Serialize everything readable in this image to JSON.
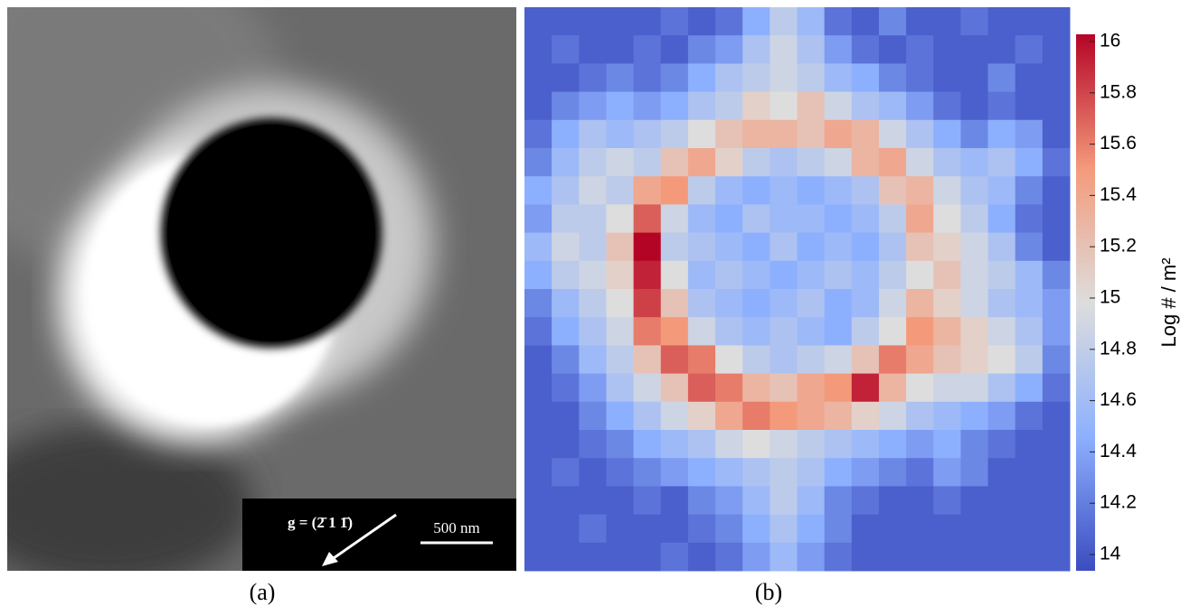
{
  "panel_a": {
    "label": "(a)",
    "direction_label": "g = (2̄ 1 1̄)",
    "scale_bar_label": "500 nm"
  },
  "chart_data": {
    "type": "heatmap",
    "label": "(b)",
    "colormap": [
      "#3b4cc0",
      "#8db0fe",
      "#dddddd",
      "#f49a7b",
      "#b40426"
    ],
    "colorbar": {
      "label": "Log # / m²",
      "lim": [
        14,
        16
      ],
      "ticks": [
        14,
        14.2,
        14.4,
        14.6,
        14.8,
        15,
        15.2,
        15.4,
        15.6,
        15.8,
        16
      ]
    },
    "values": [
      [
        14.1,
        14.1,
        14.1,
        14.1,
        14.1,
        14.2,
        14.1,
        14.2,
        14.5,
        14.8,
        14.6,
        14.2,
        14.1,
        14.3,
        14.1,
        14.1,
        14.2,
        14.1,
        14.1,
        14.1
      ],
      [
        14.1,
        14.2,
        14.1,
        14.1,
        14.2,
        14.1,
        14.3,
        14.4,
        14.7,
        14.9,
        14.7,
        14.4,
        14.2,
        14.1,
        14.2,
        14.1,
        14.1,
        14.1,
        14.2,
        14.1
      ],
      [
        14.1,
        14.1,
        14.2,
        14.3,
        14.2,
        14.3,
        14.5,
        14.7,
        14.8,
        14.9,
        14.8,
        14.6,
        14.5,
        14.3,
        14.2,
        14.1,
        14.1,
        14.3,
        14.1,
        14.1
      ],
      [
        14.1,
        14.3,
        14.4,
        14.5,
        14.4,
        14.5,
        14.7,
        14.8,
        15.1,
        15.0,
        15.2,
        14.9,
        14.7,
        14.6,
        14.4,
        14.2,
        14.1,
        14.2,
        14.1,
        14.1
      ],
      [
        14.2,
        14.5,
        14.7,
        14.6,
        14.7,
        14.8,
        15.0,
        15.2,
        15.3,
        15.3,
        15.2,
        15.4,
        15.3,
        14.9,
        14.7,
        14.5,
        14.3,
        14.5,
        14.4,
        14.1
      ],
      [
        14.3,
        14.6,
        14.8,
        14.9,
        14.8,
        15.2,
        15.4,
        15.1,
        14.8,
        14.7,
        14.8,
        14.9,
        15.3,
        15.4,
        14.9,
        14.7,
        14.6,
        14.7,
        14.5,
        14.2
      ],
      [
        14.5,
        14.7,
        14.9,
        14.8,
        15.4,
        15.5,
        14.8,
        14.6,
        14.5,
        14.6,
        14.5,
        14.6,
        14.7,
        15.2,
        15.3,
        14.9,
        14.7,
        14.6,
        14.3,
        14.1
      ],
      [
        14.4,
        14.8,
        14.8,
        15.0,
        15.7,
        14.9,
        14.6,
        14.5,
        14.7,
        14.6,
        14.6,
        14.5,
        14.6,
        14.8,
        15.4,
        15.0,
        14.8,
        14.5,
        14.2,
        14.1
      ],
      [
        14.6,
        14.9,
        14.8,
        15.2,
        16.0,
        14.8,
        14.7,
        14.6,
        14.5,
        14.7,
        14.5,
        14.6,
        14.5,
        14.7,
        15.2,
        15.1,
        14.9,
        14.7,
        14.3,
        14.1
      ],
      [
        14.5,
        14.8,
        14.9,
        15.1,
        15.9,
        15.0,
        14.6,
        14.7,
        14.6,
        14.5,
        14.6,
        14.7,
        14.6,
        14.8,
        15.0,
        15.2,
        14.9,
        14.8,
        14.6,
        14.3
      ],
      [
        14.3,
        14.6,
        14.8,
        15.0,
        15.8,
        15.2,
        14.7,
        14.6,
        14.5,
        14.6,
        14.7,
        14.5,
        14.6,
        14.9,
        15.3,
        15.1,
        14.9,
        14.7,
        14.6,
        14.4
      ],
      [
        14.2,
        14.5,
        14.7,
        14.9,
        15.6,
        15.5,
        14.9,
        14.7,
        14.6,
        14.7,
        14.6,
        14.5,
        14.8,
        15.0,
        15.5,
        15.3,
        15.1,
        14.9,
        14.7,
        14.4
      ],
      [
        14.1,
        14.3,
        14.6,
        14.8,
        15.2,
        15.7,
        15.6,
        15.0,
        14.8,
        14.7,
        14.8,
        14.9,
        15.2,
        15.6,
        15.4,
        15.2,
        15.1,
        15.0,
        14.8,
        14.3
      ],
      [
        14.1,
        14.2,
        14.4,
        14.7,
        14.9,
        15.2,
        15.7,
        15.6,
        15.3,
        15.2,
        15.4,
        15.5,
        15.9,
        15.3,
        15.0,
        14.9,
        14.9,
        14.7,
        14.5,
        14.2
      ],
      [
        14.1,
        14.1,
        14.3,
        14.5,
        14.7,
        14.9,
        15.1,
        15.4,
        15.6,
        15.5,
        15.4,
        15.3,
        15.1,
        14.9,
        14.7,
        14.6,
        14.5,
        14.4,
        14.2,
        14.1
      ],
      [
        14.1,
        14.1,
        14.2,
        14.3,
        14.5,
        14.6,
        14.7,
        14.9,
        15.0,
        14.9,
        14.8,
        14.7,
        14.6,
        14.5,
        14.4,
        14.5,
        14.3,
        14.2,
        14.1,
        14.1
      ],
      [
        14.1,
        14.2,
        14.1,
        14.2,
        14.3,
        14.4,
        14.5,
        14.6,
        14.7,
        14.8,
        14.7,
        14.5,
        14.4,
        14.3,
        14.2,
        14.4,
        14.3,
        14.1,
        14.1,
        14.1
      ],
      [
        14.1,
        14.1,
        14.1,
        14.1,
        14.2,
        14.1,
        14.3,
        14.4,
        14.6,
        14.8,
        14.6,
        14.3,
        14.2,
        14.1,
        14.1,
        14.2,
        14.1,
        14.1,
        14.1,
        14.1
      ],
      [
        14.1,
        14.1,
        14.2,
        14.1,
        14.1,
        14.1,
        14.2,
        14.3,
        14.5,
        14.7,
        14.5,
        14.3,
        14.1,
        14.1,
        14.1,
        14.1,
        14.1,
        14.1,
        14.1,
        14.1
      ],
      [
        14.1,
        14.1,
        14.1,
        14.1,
        14.1,
        14.2,
        14.1,
        14.2,
        14.4,
        14.6,
        14.4,
        14.2,
        14.1,
        14.1,
        14.1,
        14.1,
        14.1,
        14.1,
        14.1,
        14.1
      ]
    ]
  }
}
